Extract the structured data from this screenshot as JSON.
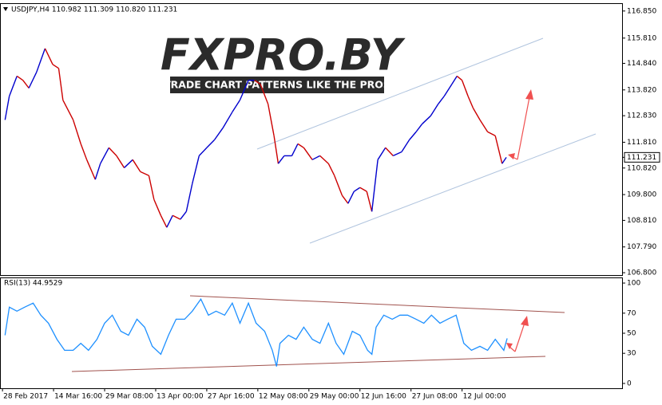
{
  "chart_data": [
    {
      "type": "line",
      "header": "USDJPY,H4  110.982 111.309 110.820 111.231",
      "watermark": "FXPRO.BY",
      "watermark_tagline": "TRADE CHART PATTERNS LIKE THE PROS",
      "up_color": "#0000cd",
      "down_color": "#cc0000",
      "last_price": {
        "value": 111.231,
        "label": "111.231"
      },
      "xlim": [
        -2,
        728
      ],
      "ylim": [
        106.71,
        117.12
      ],
      "yticks": [
        {
          "value": 116.85,
          "label": "116.850"
        },
        {
          "value": 115.81,
          "label": "115.810"
        },
        {
          "value": 114.84,
          "label": "114.840"
        },
        {
          "value": 113.82,
          "label": "113.820"
        },
        {
          "value": 112.83,
          "label": "112.830"
        },
        {
          "value": 111.81,
          "label": "111.810"
        },
        {
          "value": 110.82,
          "label": "110.820"
        },
        {
          "value": 109.8,
          "label": "109.800"
        },
        {
          "value": 108.81,
          "label": "108.810"
        },
        {
          "value": 107.79,
          "label": "107.790"
        },
        {
          "value": 106.8,
          "label": "106.800"
        }
      ],
      "series": [
        {
          "name": "USDJPY",
          "x": [
            3,
            8,
            17,
            24,
            31,
            40,
            50,
            59,
            66,
            71,
            83,
            92,
            99,
            109,
            115,
            125,
            134,
            143,
            153,
            162,
            172,
            178,
            186,
            193,
            200,
            209,
            216,
            223,
            231,
            240,
            249,
            259,
            270,
            279,
            289,
            296,
            303,
            312,
            319,
            324,
            331,
            340,
            347,
            354,
            364,
            373,
            383,
            390,
            399,
            406,
            413,
            420,
            428,
            434,
            441,
            450,
            459,
            469,
            478,
            486,
            493,
            503,
            512,
            519,
            528,
            534,
            540,
            547,
            553,
            561,
            570,
            579,
            587,
            592
          ],
          "values": [
            112.67,
            113.58,
            114.35,
            114.19,
            113.89,
            114.5,
            115.41,
            114.8,
            114.65,
            113.43,
            112.67,
            111.75,
            111.14,
            110.38,
            110.99,
            111.6,
            111.29,
            110.83,
            111.14,
            110.68,
            110.53,
            109.61,
            109.0,
            108.54,
            109.0,
            108.85,
            109.15,
            110.22,
            111.29,
            111.6,
            111.9,
            112.36,
            112.97,
            113.43,
            114.19,
            114.19,
            114.04,
            113.28,
            112.06,
            110.99,
            111.29,
            111.29,
            111.75,
            111.6,
            111.14,
            111.29,
            110.99,
            110.53,
            109.77,
            109.46,
            109.92,
            110.07,
            109.92,
            109.15,
            111.14,
            111.6,
            111.29,
            111.44,
            111.9,
            112.21,
            112.51,
            112.82,
            113.28,
            113.58,
            114.04,
            114.35,
            114.19,
            113.58,
            113.12,
            112.67,
            112.21,
            112.06,
            110.99,
            111.23
          ]
        }
      ]
    },
    {
      "type": "line",
      "label": "RSI(13) 44.9529",
      "xlim": [
        -2,
        728
      ],
      "ylim": [
        -4.8,
        104.8
      ],
      "yticks": [
        100,
        70,
        50,
        30,
        0
      ],
      "xticks": [
        {
          "value": 0,
          "label": "28 Feb 2017"
        },
        {
          "value": 60,
          "label": "14 Mar 16:00"
        },
        {
          "value": 120,
          "label": "29 Mar 08:00"
        },
        {
          "value": 180,
          "label": "13 Apr 00:00"
        },
        {
          "value": 240,
          "label": "27 Apr 16:00"
        },
        {
          "value": 300,
          "label": "12 May 08:00"
        },
        {
          "value": 360,
          "label": "29 May 00:00"
        },
        {
          "value": 420,
          "label": "12 Jun 16:00"
        },
        {
          "value": 480,
          "label": "27 Jun 08:00"
        },
        {
          "value": 540,
          "label": "12 Jul 00:00"
        }
      ],
      "series": [
        {
          "name": "RSI(13)",
          "color": "#1e90ff",
          "x": [
            3,
            8,
            17,
            26,
            36,
            45,
            54,
            64,
            73,
            83,
            92,
            101,
            111,
            120,
            129,
            139,
            148,
            158,
            167,
            176,
            186,
            195,
            204,
            214,
            223,
            233,
            242,
            251,
            261,
            270,
            279,
            289,
            298,
            308,
            317,
            322,
            326,
            336,
            345,
            354,
            364,
            373,
            383,
            392,
            401,
            411,
            420,
            429,
            434,
            439,
            448,
            458,
            467,
            476,
            486,
            495,
            504,
            514,
            523,
            533,
            542,
            551,
            561,
            570,
            579,
            589,
            593
          ],
          "values": [
            48,
            76,
            72,
            76,
            80,
            68,
            60,
            44,
            33,
            33,
            40,
            33,
            44,
            60,
            68,
            52,
            48,
            64,
            56,
            37,
            29,
            48,
            64,
            64,
            72,
            84,
            68,
            72,
            68,
            80,
            60,
            80,
            60,
            52,
            33,
            17,
            40,
            48,
            44,
            56,
            44,
            40,
            60,
            40,
            29,
            52,
            48,
            33,
            29,
            56,
            68,
            64,
            68,
            68,
            64,
            60,
            68,
            60,
            64,
            68,
            40,
            33,
            37,
            33,
            44,
            33,
            44.95
          ]
        }
      ]
    }
  ]
}
